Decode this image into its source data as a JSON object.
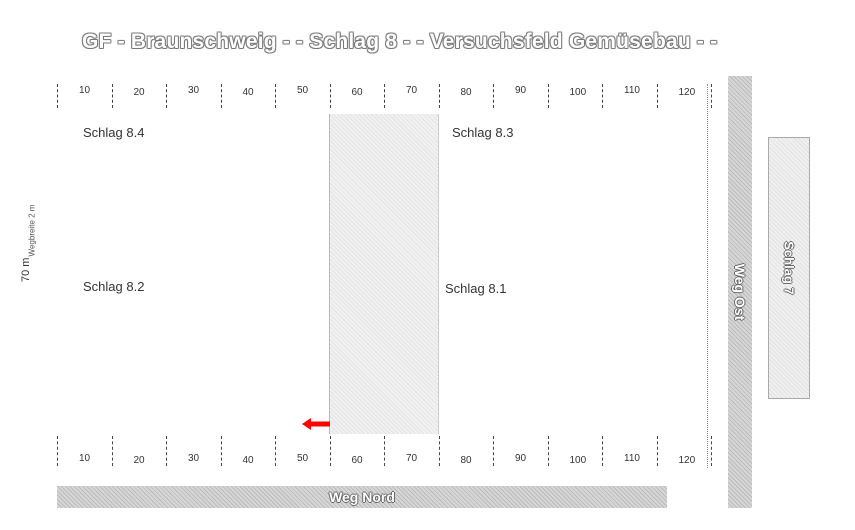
{
  "title": "GF - Braunschweig - - Schlag 8 - - Versuchsfeld Gemüsebau - -",
  "scale_top": [
    "10",
    "20",
    "30",
    "40",
    "50",
    "60",
    "70",
    "80",
    "90",
    "100",
    "110",
    "120"
  ],
  "scale_bottom": [
    "10",
    "20",
    "30",
    "40",
    "50",
    "60",
    "70",
    "80",
    "90",
    "100",
    "110",
    "120"
  ],
  "plots": {
    "p84": "Schlag 8.4",
    "p83": "Schlag 8.3",
    "p82": "Schlag 8.2",
    "p81": "Schlag 8.1"
  },
  "side": {
    "length": "70 m",
    "note": "Wegbreite 2 m"
  },
  "roads": {
    "north": "Weg Nord",
    "east": "Weg Ost"
  },
  "neighbour": "Schlag 7",
  "colors": {
    "arrow": "#ff0000",
    "road": "#cccccc"
  }
}
